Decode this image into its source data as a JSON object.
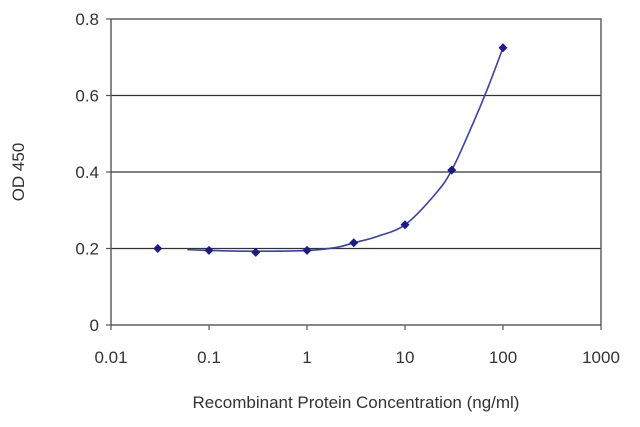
{
  "chart_data": {
    "type": "scatter",
    "xscale": "log",
    "xlabel": "Recombinant Protein Concentration (ng/ml)",
    "ylabel": "OD 450",
    "xlim": [
      0.01,
      1000
    ],
    "ylim": [
      0,
      0.8
    ],
    "x_ticks": [
      "0.01",
      "0.1",
      "1",
      "10",
      "100",
      "1000"
    ],
    "y_ticks": [
      "0",
      "0.2",
      "0.4",
      "0.6",
      "0.8"
    ],
    "grid": "horizontal",
    "point_color": "#1a1a8c",
    "curve_color": "#3a3fb0",
    "points": [
      {
        "x": 0.03,
        "y": 0.2
      },
      {
        "x": 0.1,
        "y": 0.195
      },
      {
        "x": 0.3,
        "y": 0.19
      },
      {
        "x": 1,
        "y": 0.195
      },
      {
        "x": 3,
        "y": 0.215
      },
      {
        "x": 10,
        "y": 0.262
      },
      {
        "x": 30,
        "y": 0.405
      },
      {
        "x": 100,
        "y": 0.725
      }
    ],
    "fit_curve": [
      {
        "x": 0.06,
        "y": 0.197
      },
      {
        "x": 0.1,
        "y": 0.195
      },
      {
        "x": 0.3,
        "y": 0.193
      },
      {
        "x": 1,
        "y": 0.195
      },
      {
        "x": 2,
        "y": 0.203
      },
      {
        "x": 3,
        "y": 0.215
      },
      {
        "x": 5,
        "y": 0.23
      },
      {
        "x": 10,
        "y": 0.262
      },
      {
        "x": 20,
        "y": 0.34
      },
      {
        "x": 30,
        "y": 0.405
      },
      {
        "x": 50,
        "y": 0.53
      },
      {
        "x": 70,
        "y": 0.62
      },
      {
        "x": 100,
        "y": 0.725
      }
    ]
  }
}
